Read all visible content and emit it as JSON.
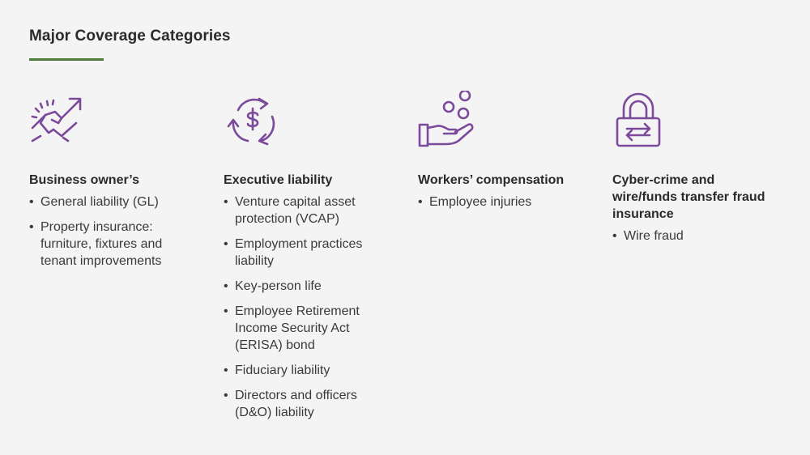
{
  "page": {
    "title": "Major Coverage Categories"
  },
  "colors": {
    "accent_rule": "#4f7a3a",
    "icon": "#7b4a9b",
    "background": "#f4f4f4"
  },
  "columns": [
    {
      "icon": "handshake-growth-icon",
      "heading": "Business owner’s",
      "items": [
        "General liability (GL)",
        "Property insurance: furniture, fixtures and tenant improvements"
      ]
    },
    {
      "icon": "dollar-cycle-icon",
      "heading": "Executive liability",
      "items": [
        "Venture capital asset protection (VCAP)",
        "Employment practices liability",
        "Key-person life",
        "Employee Retirement Income Security Act (ERISA) bond",
        "Fiduciary liability",
        "Directors and officers (D&O) liability"
      ]
    },
    {
      "icon": "hand-coins-icon",
      "heading": "Workers’ compensation",
      "items": [
        "Employee injuries"
      ]
    },
    {
      "icon": "padlock-transfer-icon",
      "heading": "Cyber-crime and wire/funds transfer fraud insurance",
      "items": [
        "Wire fraud"
      ]
    }
  ]
}
